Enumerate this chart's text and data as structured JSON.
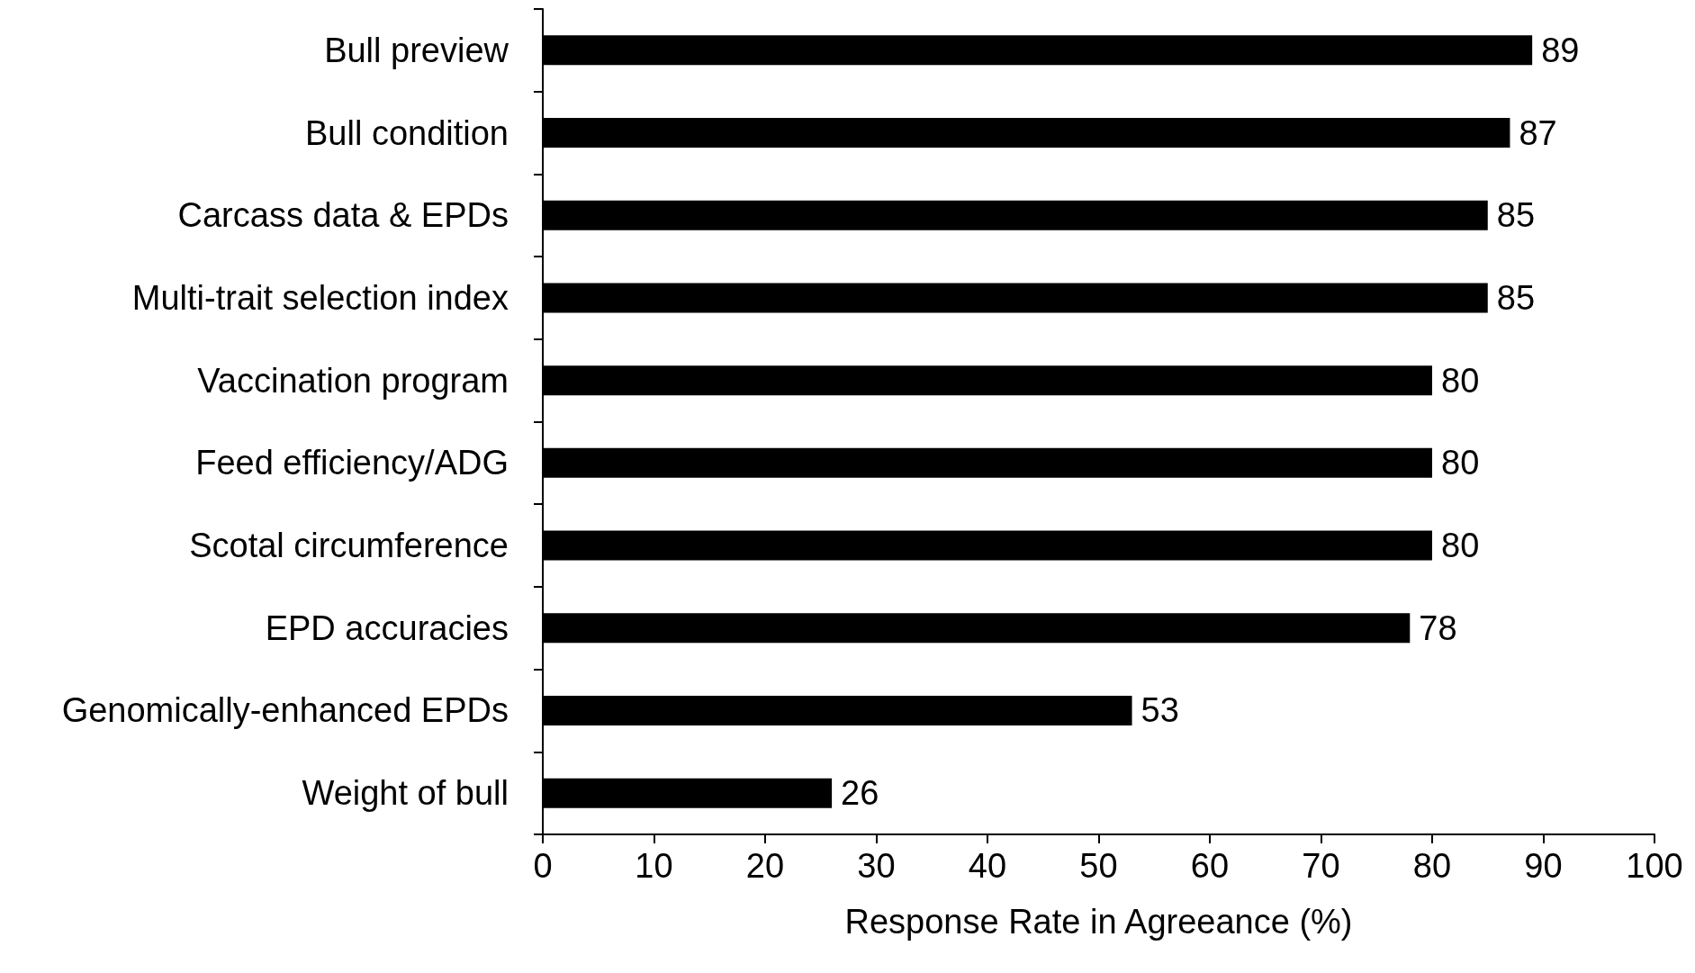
{
  "chart_data": {
    "type": "bar",
    "orientation": "horizontal",
    "xlabel": "Response Rate in Agreeance (%)",
    "categories": [
      "Bull preview",
      "Bull condition",
      "Carcass data & EPDs",
      "Multi-trait selection index",
      "Vaccination program",
      "Feed efficiency/ADG",
      "Scotal circumference",
      "EPD accuracies",
      "Genomically-enhanced EPDs",
      "Weight of bull"
    ],
    "values": [
      89,
      87,
      85,
      85,
      80,
      80,
      80,
      78,
      53,
      26
    ],
    "color": "#000000",
    "xlim": [
      0,
      100
    ],
    "xticks": [
      0,
      10,
      20,
      30,
      40,
      50,
      60,
      70,
      80,
      90,
      100
    ],
    "data_labels": true,
    "grid": false
  }
}
